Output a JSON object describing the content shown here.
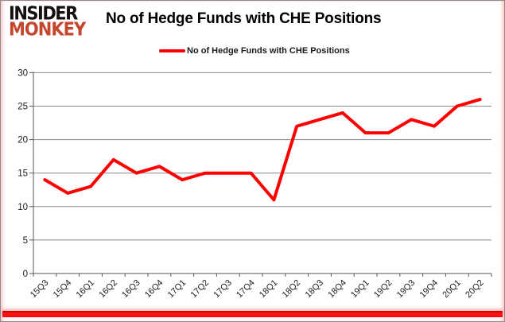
{
  "header": {
    "logo_line1": "INSIDER",
    "logo_line2": "MONKEY",
    "title": "No of Hedge Funds with CHE Positions"
  },
  "legend": {
    "label": "No of Hedge Funds with CHE Positions"
  },
  "chart_data": {
    "type": "line",
    "title": "No of Hedge Funds with CHE Positions",
    "categories": [
      "15Q3",
      "15Q4",
      "16Q1",
      "16Q2",
      "16Q3",
      "16Q4",
      "17Q1",
      "17Q2",
      "17Q3",
      "17Q4",
      "18Q1",
      "18Q2",
      "18Q3",
      "18Q4",
      "19Q1",
      "19Q2",
      "19Q3",
      "19Q4",
      "20Q1",
      "20Q2"
    ],
    "series": [
      {
        "name": "No of Hedge Funds with CHE Positions",
        "values": [
          14,
          12,
          13,
          17,
          15,
          16,
          14,
          15,
          15,
          15,
          11,
          22,
          23,
          24,
          21,
          21,
          23,
          22,
          25,
          26
        ],
        "color": "#ff0000"
      }
    ],
    "xlabel": "",
    "ylabel": "",
    "ylim": [
      0,
      30
    ],
    "yticks": [
      0,
      5,
      10,
      15,
      20,
      25,
      30
    ],
    "grid": "horizontal",
    "legend_position": "top-center"
  },
  "theme": {
    "line_color": "#ff0000",
    "logo_red": "#c5462c",
    "grid_color": "#8a8a8a",
    "axis_color": "#555555",
    "label_color": "#1a1a1a",
    "border_gray": "#8c8c8c",
    "accent_bar_red": "#ff0000"
  }
}
